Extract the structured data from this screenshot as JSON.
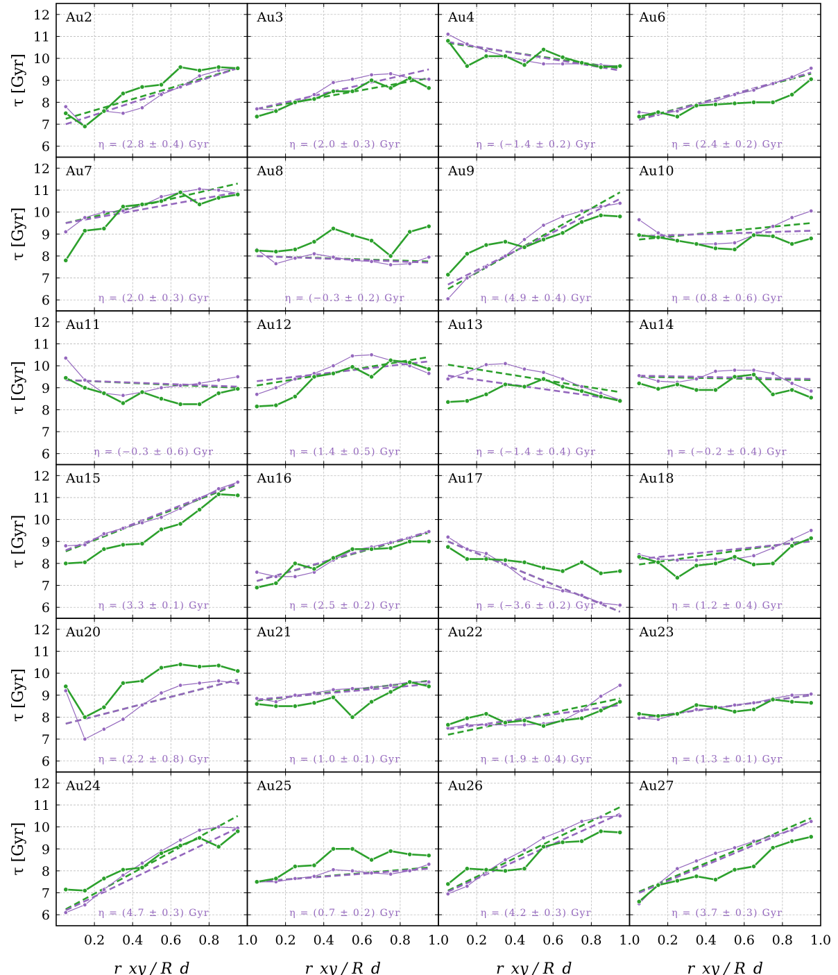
{
  "chart_data": {
    "type": "line",
    "layout": "grid 6 rows x 4 columns, shared axes",
    "xlabel": "r_xy / R_d",
    "ylabel": "τ [Gyr]",
    "xlim": [
      0,
      1.0
    ],
    "ylim": [
      5.5,
      12.5
    ],
    "xticks": [
      "0.2",
      "0.4",
      "0.6",
      "0.8",
      "1.0"
    ],
    "yticks": [
      "6",
      "7",
      "8",
      "9",
      "10",
      "11",
      "12"
    ],
    "x": [
      0.05,
      0.15,
      0.25,
      0.35,
      0.45,
      0.55,
      0.65,
      0.75,
      0.85,
      0.95
    ],
    "grid": true,
    "colors": {
      "green": "#2ca02c",
      "purple": "#9467bd"
    },
    "panels": [
      {
        "label": "Au2",
        "eta": "η = (2.8 ± 0.4) Gyr",
        "green": [
          7.5,
          6.9,
          7.6,
          8.4,
          8.7,
          8.8,
          9.6,
          9.45,
          9.6,
          9.55
        ],
        "purple": [
          7.8,
          6.9,
          7.6,
          7.5,
          7.75,
          8.35,
          8.7,
          9.2,
          9.45,
          9.55
        ],
        "fit_green": [
          7.25,
          9.55
        ],
        "fit_purple": [
          7.0,
          9.55
        ]
      },
      {
        "label": "Au3",
        "eta": "η = (2.0 ± 0.3) Gyr",
        "green": [
          7.35,
          7.6,
          8.0,
          8.15,
          8.5,
          8.5,
          9.0,
          8.65,
          9.1,
          8.65
        ],
        "purple": [
          7.7,
          7.65,
          7.95,
          8.35,
          8.9,
          9.05,
          9.25,
          9.3,
          9.1,
          9.05
        ],
        "fit_green": [
          7.7,
          9.1
        ],
        "fit_purple": [
          7.7,
          9.5
        ]
      },
      {
        "label": "Au4",
        "eta": "η = (−1.4 ± 0.2) Gyr",
        "green": [
          10.8,
          9.65,
          10.1,
          10.1,
          9.7,
          10.4,
          10.05,
          9.8,
          9.6,
          9.65
        ],
        "purple": [
          11.1,
          10.65,
          10.35,
          10.1,
          9.9,
          9.75,
          9.75,
          9.75,
          9.7,
          9.65
        ],
        "fit_green": [
          10.7,
          9.55
        ],
        "fit_purple": [
          10.75,
          9.45
        ]
      },
      {
        "label": "Au6",
        "eta": "η = (2.4 ± 0.2) Gyr",
        "green": [
          7.35,
          7.55,
          7.35,
          7.85,
          7.9,
          7.95,
          8.0,
          8.0,
          8.35,
          9.05
        ],
        "purple": [
          7.55,
          7.45,
          7.6,
          7.9,
          8.05,
          8.35,
          8.55,
          8.85,
          9.15,
          9.55
        ],
        "fit_green": [
          7.25,
          9.3
        ],
        "fit_purple": [
          7.2,
          9.35
        ]
      },
      {
        "label": "Au7",
        "eta": "η = (2.0 ± 0.3) Gyr",
        "green": [
          7.8,
          9.15,
          9.25,
          10.25,
          10.35,
          10.5,
          10.9,
          10.35,
          10.65,
          10.8
        ],
        "purple": [
          9.1,
          9.75,
          10.0,
          10.05,
          10.3,
          10.7,
          10.9,
          11.05,
          11.0,
          10.85
        ],
        "fit_green": [
          9.5,
          11.3
        ],
        "fit_purple": [
          9.5,
          10.9
        ]
      },
      {
        "label": "Au8",
        "eta": "η = (−0.3 ± 0.2) Gyr",
        "green": [
          8.25,
          8.2,
          8.3,
          8.65,
          9.25,
          8.95,
          8.7,
          8.0,
          9.1,
          9.35
        ],
        "purple": [
          8.3,
          7.65,
          7.9,
          8.1,
          7.95,
          7.8,
          7.75,
          7.6,
          7.65,
          7.95
        ],
        "fit_green": [
          8.0,
          7.75
        ],
        "fit_purple": [
          8.0,
          7.7
        ]
      },
      {
        "label": "Au9",
        "eta": "η = (4.9 ± 0.4) Gyr",
        "green": [
          7.15,
          8.1,
          8.5,
          8.65,
          8.4,
          8.75,
          9.05,
          9.55,
          9.85,
          9.8
        ],
        "purple": [
          6.05,
          7.0,
          7.5,
          8.0,
          8.75,
          9.4,
          9.8,
          10.05,
          10.25,
          10.4
        ],
        "fit_green": [
          6.5,
          10.9
        ],
        "fit_purple": [
          6.7,
          10.6
        ]
      },
      {
        "label": "Au10",
        "eta": "η = (0.8 ± 0.6) Gyr",
        "green": [
          8.95,
          8.85,
          8.7,
          8.55,
          8.35,
          8.3,
          8.95,
          8.9,
          8.55,
          8.8
        ],
        "purple": [
          9.65,
          9.05,
          8.7,
          8.55,
          8.55,
          8.6,
          8.95,
          9.35,
          9.75,
          10.05
        ],
        "fit_green": [
          8.75,
          9.5
        ],
        "fit_purple": [
          8.9,
          9.15
        ]
      },
      {
        "label": "Au11",
        "eta": "η = (−0.3 ± 0.6) Gyr",
        "green": [
          9.45,
          9.0,
          8.75,
          8.3,
          8.8,
          8.5,
          8.25,
          8.25,
          8.75,
          8.95
        ],
        "purple": [
          10.35,
          9.35,
          8.75,
          8.65,
          8.8,
          9.0,
          9.1,
          9.2,
          9.35,
          9.5
        ],
        "fit_green": [
          9.35,
          9.0
        ],
        "fit_purple": [
          9.35,
          9.05
        ]
      },
      {
        "label": "Au12",
        "eta": "η = (1.4 ± 0.5) Gyr",
        "green": [
          8.15,
          8.2,
          8.6,
          9.5,
          9.65,
          9.95,
          9.5,
          10.25,
          10.15,
          9.85
        ],
        "purple": [
          8.7,
          9.0,
          9.4,
          9.65,
          10.0,
          10.45,
          10.5,
          10.25,
          10.0,
          9.65
        ],
        "fit_green": [
          9.1,
          10.4
        ],
        "fit_purple": [
          9.3,
          10.2
        ]
      },
      {
        "label": "Au13",
        "eta": "η = (−1.4 ± 0.4) Gyr",
        "green": [
          8.35,
          8.4,
          8.7,
          9.15,
          9.05,
          9.4,
          9.05,
          8.85,
          8.6,
          8.4
        ],
        "purple": [
          9.4,
          9.7,
          10.05,
          10.1,
          9.85,
          9.7,
          9.4,
          9.05,
          8.75,
          8.45
        ],
        "fit_green": [
          10.05,
          8.8
        ],
        "fit_purple": [
          9.55,
          8.45
        ]
      },
      {
        "label": "Au14",
        "eta": "η = (−0.2 ± 0.4) Gyr",
        "green": [
          9.2,
          8.95,
          9.15,
          8.9,
          8.9,
          9.5,
          9.6,
          8.7,
          8.9,
          8.55
        ],
        "purple": [
          9.55,
          9.3,
          9.25,
          9.4,
          9.75,
          9.8,
          9.8,
          9.65,
          9.2,
          8.85
        ],
        "fit_green": [
          9.5,
          9.35
        ],
        "fit_purple": [
          9.55,
          9.4
        ]
      },
      {
        "label": "Au15",
        "eta": "η = (3.3 ± 0.1) Gyr",
        "green": [
          8.0,
          8.05,
          8.65,
          8.85,
          8.9,
          9.55,
          9.8,
          10.45,
          11.15,
          11.1
        ],
        "purple": [
          8.8,
          8.85,
          9.35,
          9.6,
          9.85,
          10.1,
          10.5,
          10.95,
          11.4,
          11.7
        ],
        "fit_green": [
          8.55,
          11.6
        ],
        "fit_purple": [
          8.6,
          11.65
        ]
      },
      {
        "label": "Au16",
        "eta": "η = (2.5 ± 0.2) Gyr",
        "green": [
          6.9,
          7.1,
          8.0,
          7.75,
          8.25,
          8.65,
          8.65,
          8.7,
          9.0,
          9.0
        ],
        "purple": [
          7.6,
          7.4,
          7.4,
          7.6,
          8.15,
          8.6,
          8.75,
          8.95,
          9.15,
          9.45
        ],
        "fit_green": [
          7.2,
          9.4
        ],
        "fit_purple": [
          7.2,
          9.45
        ]
      },
      {
        "label": "Au17",
        "eta": "η = (−3.6 ± 0.2) Gyr",
        "green": [
          8.75,
          8.2,
          8.2,
          8.15,
          8.05,
          7.8,
          7.65,
          8.05,
          7.55,
          7.65
        ],
        "purple": [
          9.2,
          8.65,
          8.45,
          7.95,
          7.3,
          6.95,
          6.75,
          6.55,
          6.2,
          6.1
        ],
        "fit_green": [
          9.0,
          5.8
        ],
        "fit_purple": [
          9.0,
          5.8
        ]
      },
      {
        "label": "Au18",
        "eta": "η = (1.2 ± 0.4) Gyr",
        "green": [
          8.3,
          8.05,
          7.35,
          7.9,
          8.0,
          8.3,
          7.95,
          8.0,
          8.8,
          9.15
        ],
        "purple": [
          8.4,
          8.2,
          8.15,
          8.15,
          8.2,
          8.2,
          8.35,
          8.7,
          9.1,
          9.5
        ],
        "fit_green": [
          7.95,
          9.05
        ],
        "fit_purple": [
          8.2,
          9.0
        ]
      },
      {
        "label": "Au20",
        "eta": "η = (2.2 ± 0.8) Gyr",
        "green": [
          9.4,
          8.0,
          8.45,
          9.55,
          9.65,
          10.25,
          10.4,
          10.3,
          10.35,
          10.1
        ],
        "purple": [
          9.2,
          7.0,
          7.45,
          7.9,
          8.55,
          9.1,
          9.45,
          9.55,
          9.65,
          9.55
        ],
        "fit_green": [
          7.7,
          9.7
        ],
        "fit_purple": [
          7.7,
          9.7
        ]
      },
      {
        "label": "Au21",
        "eta": "η = (1.0 ± 0.1) Gyr",
        "green": [
          8.6,
          8.5,
          8.5,
          8.65,
          8.9,
          8.0,
          8.7,
          9.15,
          9.6,
          9.4
        ],
        "purple": [
          8.85,
          8.7,
          9.0,
          9.1,
          9.25,
          9.3,
          9.35,
          9.45,
          9.6,
          9.6
        ],
        "fit_green": [
          8.75,
          9.65
        ],
        "fit_purple": [
          8.8,
          9.5
        ]
      },
      {
        "label": "Au22",
        "eta": "η = (1.9 ± 0.4) Gyr",
        "green": [
          7.65,
          7.95,
          8.15,
          7.75,
          7.85,
          7.6,
          7.85,
          7.95,
          8.3,
          8.7
        ],
        "purple": [
          7.5,
          7.65,
          7.65,
          7.65,
          7.65,
          7.7,
          7.85,
          8.3,
          8.95,
          9.45
        ],
        "fit_green": [
          7.2,
          8.85
        ],
        "fit_purple": [
          7.45,
          8.55
        ]
      },
      {
        "label": "Au23",
        "eta": "η = (1.3 ± 0.1) Gyr",
        "green": [
          8.15,
          8.05,
          8.15,
          8.55,
          8.45,
          8.25,
          8.35,
          8.8,
          8.7,
          8.65
        ],
        "purple": [
          7.95,
          7.9,
          8.15,
          8.35,
          8.4,
          8.55,
          8.65,
          8.85,
          9.0,
          9.05
        ],
        "fit_green": [
          7.95,
          9.0
        ],
        "fit_purple": [
          7.95,
          9.0
        ]
      },
      {
        "label": "Au24",
        "eta": "η = (4.7 ± 0.3) Gyr",
        "green": [
          7.15,
          7.1,
          7.65,
          8.05,
          8.15,
          8.8,
          9.15,
          9.5,
          9.1,
          9.8
        ],
        "purple": [
          6.1,
          6.45,
          7.15,
          7.8,
          8.35,
          8.9,
          9.4,
          9.85,
          10.0,
          9.95
        ],
        "fit_green": [
          6.25,
          10.5
        ],
        "fit_purple": [
          6.2,
          9.95
        ]
      },
      {
        "label": "Au25",
        "eta": "η = (0.7 ± 0.2) Gyr",
        "green": [
          7.5,
          7.65,
          8.2,
          8.25,
          9.0,
          9.0,
          8.5,
          8.9,
          8.75,
          8.7
        ],
        "purple": [
          7.5,
          7.5,
          7.65,
          7.75,
          8.05,
          8.0,
          7.9,
          7.85,
          8.0,
          8.3
        ],
        "fit_green": [
          7.5,
          8.15
        ],
        "fit_purple": [
          7.5,
          8.1
        ]
      },
      {
        "label": "Au26",
        "eta": "η = (4.2 ± 0.3) Gyr",
        "green": [
          7.4,
          8.1,
          8.05,
          8.0,
          8.1,
          9.1,
          9.3,
          9.35,
          9.8,
          9.75
        ],
        "purple": [
          6.95,
          7.3,
          7.95,
          8.5,
          8.95,
          9.5,
          9.85,
          10.25,
          10.45,
          10.5
        ],
        "fit_green": [
          7.1,
          10.9
        ],
        "fit_purple": [
          7.05,
          10.6
        ]
      },
      {
        "label": "Au27",
        "eta": "η = (3.7 ± 0.3) Gyr",
        "green": [
          6.6,
          7.35,
          7.55,
          7.75,
          7.6,
          8.05,
          8.2,
          9.05,
          9.35,
          9.55
        ],
        "purple": [
          6.5,
          7.4,
          8.1,
          8.45,
          8.8,
          9.05,
          9.35,
          9.6,
          9.85,
          10.25
        ],
        "fit_green": [
          7.05,
          10.4
        ],
        "fit_purple": [
          7.0,
          10.25
        ]
      }
    ]
  }
}
